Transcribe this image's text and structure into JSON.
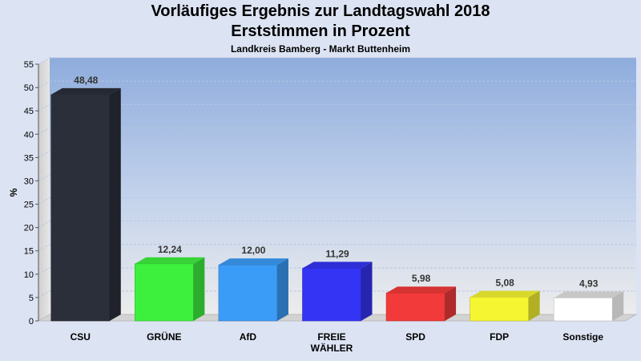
{
  "title_line1": "Vorläufiges Ergebnis zur Landtagswahl 2018",
  "title_line2": "Erststimmen in Prozent",
  "subtitle": "Landkreis Bamberg - Markt Buttenheim",
  "chart_data": {
    "type": "bar",
    "title": "Vorläufiges Ergebnis zur Landtagswahl 2018 Erststimmen in Prozent",
    "subtitle": "Landkreis Bamberg - Markt Buttenheim",
    "ylabel": "%",
    "ylim": [
      0,
      55
    ],
    "yticks": [
      0,
      5,
      10,
      15,
      20,
      25,
      30,
      35,
      40,
      45,
      50,
      55
    ],
    "grid": true,
    "categories": [
      "CSU",
      "GRÜNE",
      "AfD",
      "FREIE\nWÄHLER",
      "SPD",
      "FDP",
      "Sonstige"
    ],
    "values": [
      48.48,
      12.24,
      12.0,
      11.29,
      5.98,
      5.08,
      4.93
    ],
    "value_labels": [
      "48,48",
      "12,24",
      "12,00",
      "11,29",
      "5,98",
      "5,08",
      "4,93"
    ],
    "colors": [
      "#2b2f3a",
      "#3ef03e",
      "#3b9cf7",
      "#3434f4",
      "#f33a3a",
      "#f6f532",
      "#ffffff"
    ]
  }
}
